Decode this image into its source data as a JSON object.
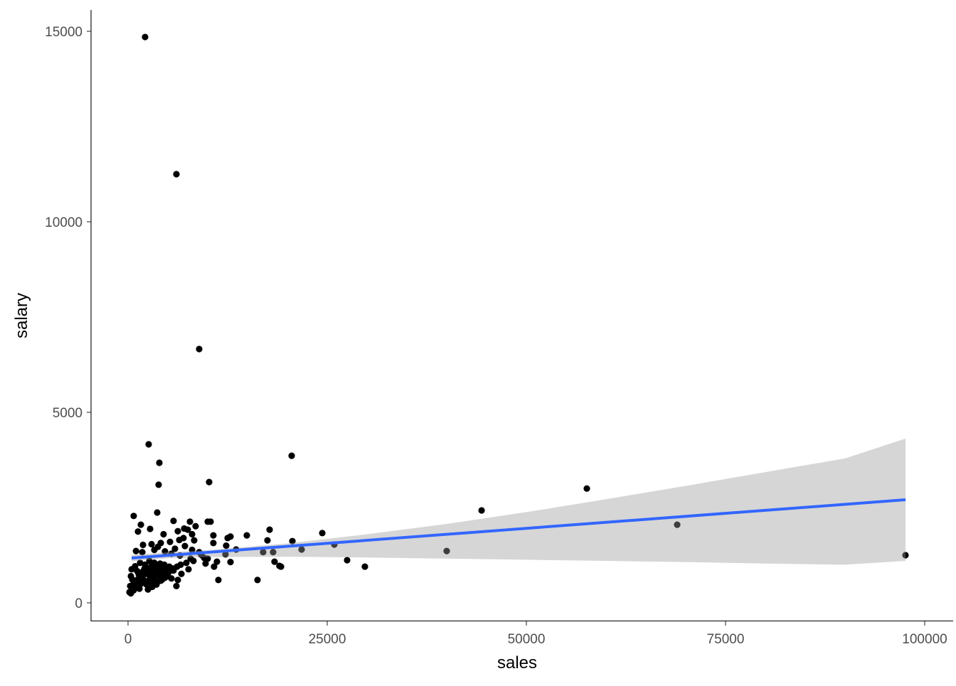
{
  "chart_data": {
    "type": "scatter",
    "title": "",
    "xlabel": "sales",
    "ylabel": "salary",
    "xlim": [
      -4500,
      102500
    ],
    "ylim": [
      -500,
      15600
    ],
    "xticks": [
      0,
      25000,
      50000,
      75000,
      100000
    ],
    "yticks": [
      0,
      5000,
      10000,
      15000
    ],
    "xtick_labels": [
      "0",
      "25000",
      "50000",
      "75000",
      "100000"
    ],
    "ytick_labels": [
      "0",
      "5000",
      "10000",
      "15000"
    ],
    "grid": false,
    "point_color": "#000000",
    "smooth": {
      "method": "lm",
      "color": "#3366FF",
      "band_color": "#999999",
      "fit": [
        [
          450,
          1175
        ],
        [
          97600,
          2705
        ]
      ],
      "band_x": [
        450,
        5000,
        10000,
        20000,
        30000,
        40000,
        50000,
        60000,
        70000,
        80000,
        90000,
        97600
      ],
      "band_lower": [
        1090,
        1170,
        1200,
        1210,
        1190,
        1160,
        1130,
        1100,
        1070,
        1030,
        1000,
        1100
      ],
      "band_upper": [
        1260,
        1330,
        1380,
        1560,
        1800,
        2070,
        2380,
        2720,
        3070,
        3430,
        3790,
        4310
      ]
    },
    "points": [
      [
        2140,
        14850
      ],
      [
        6070,
        11250
      ],
      [
        8930,
        6660
      ],
      [
        2590,
        4160
      ],
      [
        3930,
        3675
      ],
      [
        3840,
        3100
      ],
      [
        20540,
        3860
      ],
      [
        10180,
        3170
      ],
      [
        57590,
        3000
      ],
      [
        44380,
        2425
      ],
      [
        68930,
        2050
      ],
      [
        97590,
        1250
      ],
      [
        40000,
        1360
      ],
      [
        24380,
        1830
      ],
      [
        25890,
        1530
      ],
      [
        21790,
        1400
      ],
      [
        20630,
        1620
      ],
      [
        27500,
        1120
      ],
      [
        29730,
        950
      ],
      [
        16250,
        600
      ],
      [
        11340,
        600
      ],
      [
        17770,
        1920
      ],
      [
        17500,
        1640
      ],
      [
        14910,
        1770
      ],
      [
        18210,
        1330
      ],
      [
        16960,
        1330
      ],
      [
        18390,
        1080
      ],
      [
        19200,
        950
      ],
      [
        19000,
        970
      ],
      [
        12860,
        1740
      ],
      [
        12500,
        1700
      ],
      [
        12320,
        1500
      ],
      [
        13570,
        1400
      ],
      [
        12860,
        1070
      ],
      [
        12230,
        1270
      ],
      [
        10000,
        2130
      ],
      [
        10360,
        2130
      ],
      [
        7770,
        2130
      ],
      [
        7500,
        1920
      ],
      [
        3660,
        2370
      ],
      [
        710,
        2280
      ],
      [
        10710,
        1770
      ],
      [
        10710,
        1570
      ],
      [
        10800,
        950
      ],
      [
        11160,
        1080
      ],
      [
        10000,
        1160
      ],
      [
        9200,
        1260
      ],
      [
        1610,
        2050
      ],
      [
        4460,
        1800
      ],
      [
        1250,
        1870
      ],
      [
        2770,
        1940
      ],
      [
        4110,
        1570
      ],
      [
        5270,
        1600
      ],
      [
        6430,
        1650
      ],
      [
        5710,
        2150
      ],
      [
        7050,
        1950
      ],
      [
        6250,
        1880
      ],
      [
        6960,
        1700
      ],
      [
        8040,
        1800
      ],
      [
        8300,
        1640
      ],
      [
        8480,
        2010
      ],
      [
        2950,
        1540
      ],
      [
        1880,
        1520
      ],
      [
        3750,
        1470
      ],
      [
        4640,
        1350
      ],
      [
        5890,
        1420
      ],
      [
        7140,
        1490
      ],
      [
        8040,
        1390
      ],
      [
        8930,
        1330
      ],
      [
        9550,
        1180
      ],
      [
        9730,
        1030
      ],
      [
        1000,
        1360
      ],
      [
        1790,
        1330
      ],
      [
        3300,
        1390
      ],
      [
        5450,
        1290
      ],
      [
        6520,
        1240
      ],
      [
        7860,
        1160
      ],
      [
        7590,
        880
      ],
      [
        6700,
        760
      ],
      [
        6250,
        600
      ],
      [
        6070,
        440
      ],
      [
        5450,
        640
      ],
      [
        4900,
        720
      ],
      [
        4460,
        830
      ],
      [
        3930,
        950
      ],
      [
        3300,
        1050
      ],
      [
        2680,
        1100
      ],
      [
        2140,
        1000
      ],
      [
        1520,
        1050
      ],
      [
        890,
        960
      ],
      [
        450,
        880
      ],
      [
        360,
        700
      ],
      [
        540,
        610
      ],
      [
        270,
        440
      ],
      [
        180,
        280
      ],
      [
        360,
        250
      ],
      [
        800,
        560
      ],
      [
        1250,
        620
      ],
      [
        1700,
        690
      ],
      [
        2230,
        760
      ],
      [
        2770,
        830
      ],
      [
        3300,
        880
      ],
      [
        3750,
        800
      ],
      [
        4200,
        730
      ],
      [
        4640,
        660
      ],
      [
        5000,
        700
      ],
      [
        1070,
        440
      ],
      [
        1610,
        500
      ],
      [
        2140,
        540
      ],
      [
        2680,
        600
      ],
      [
        3210,
        650
      ],
      [
        3750,
        560
      ],
      [
        4290,
        610
      ],
      [
        2500,
        350
      ],
      [
        3040,
        420
      ],
      [
        3570,
        480
      ],
      [
        1340,
        750
      ],
      [
        1880,
        820
      ],
      [
        2410,
        900
      ],
      [
        2950,
        960
      ],
      [
        3480,
        1000
      ],
      [
        4020,
        1030
      ],
      [
        4550,
        1000
      ],
      [
        5180,
        950
      ],
      [
        5630,
        900
      ],
      [
        4820,
        860
      ],
      [
        3840,
        720
      ],
      [
        2860,
        680
      ],
      [
        1960,
        600
      ],
      [
        1160,
        830
      ],
      [
        2050,
        890
      ],
      [
        2590,
        740
      ],
      [
        3130,
        780
      ],
      [
        3660,
        860
      ],
      [
        4380,
        900
      ],
      [
        5090,
        800
      ],
      [
        5710,
        850
      ],
      [
        6160,
        950
      ],
      [
        6610,
        1000
      ],
      [
        7320,
        1050
      ],
      [
        8210,
        1100
      ],
      [
        980,
        560
      ],
      [
        620,
        470
      ],
      [
        2320,
        480
      ],
      [
        3390,
        550
      ],
      [
        4110,
        580
      ],
      [
        2590,
        400
      ],
      [
        3040,
        520
      ],
      [
        1430,
        370
      ],
      [
        710,
        330
      ]
    ]
  }
}
